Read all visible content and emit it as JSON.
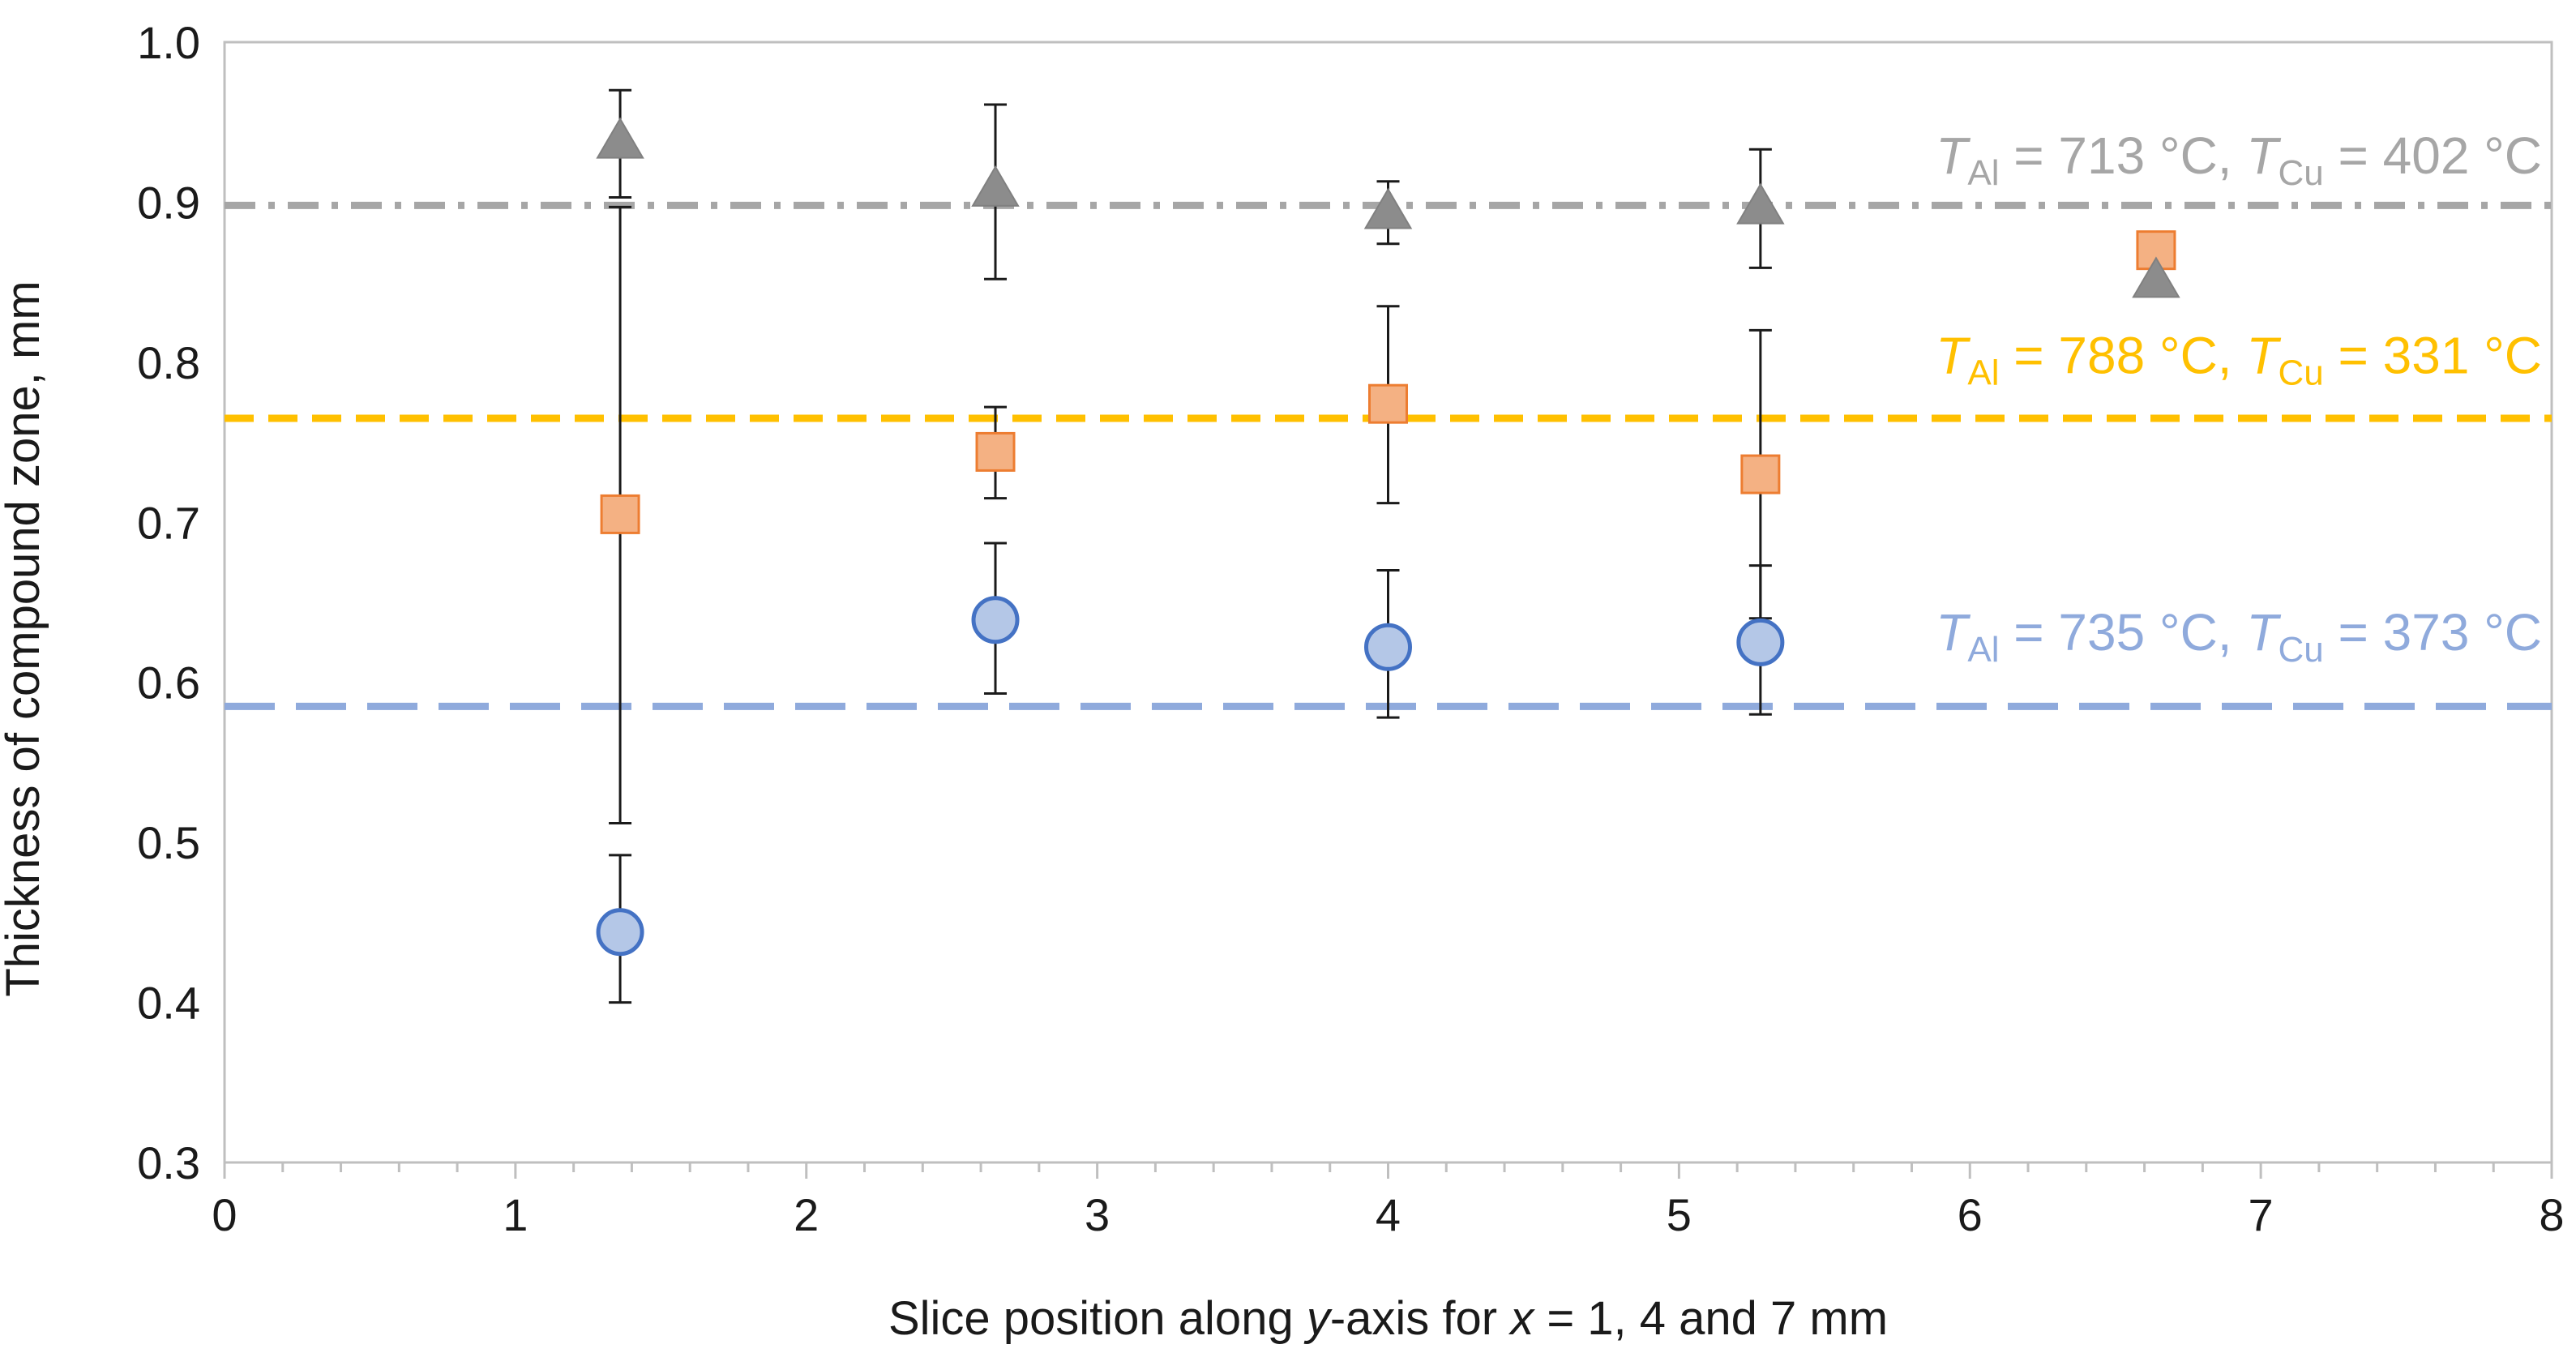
{
  "chart_data": {
    "type": "scatter",
    "title": "",
    "xlabel": "Slice position along y-axis for x = 1, 4 and 7 mm",
    "ylabel": "Thickness of compound zone, mm",
    "xlim": [
      0,
      8
    ],
    "ylim": [
      0.3,
      1.0
    ],
    "x_major_ticks": [
      0,
      1,
      2,
      3,
      4,
      5,
      6,
      7,
      8
    ],
    "x_tick_labels": [
      "0",
      "1",
      "2",
      "3",
      "4",
      "5",
      "6",
      "7",
      "8"
    ],
    "x_minor_step": 0.2,
    "y_major_ticks": [
      0.3,
      0.4,
      0.5,
      0.6,
      0.7,
      0.8,
      0.9,
      1.0
    ],
    "y_tick_labels": [
      "0.3",
      "0.4",
      "0.5",
      "0.6",
      "0.7",
      "0.8",
      "0.9",
      "1.0"
    ],
    "grid": false,
    "series": [
      {
        "name": "T_Al = 735 °C, T_Cu = 373 °C",
        "marker": "circle",
        "fill": "#b4c7e7",
        "stroke": "#4472c4",
        "mean_line": {
          "y": 0.585,
          "color": "#8faadc",
          "style": "long-dash"
        },
        "label_parts": [
          "T",
          "Al",
          " = 735 °C, ",
          "T",
          "Cu",
          " = 373 °C"
        ],
        "label_y": 0.62,
        "points": [
          {
            "x": 1.36,
            "y": 0.444,
            "err_low": 0.4,
            "err_high": 0.492
          },
          {
            "x": 2.65,
            "y": 0.639,
            "err_low": 0.593,
            "err_high": 0.687
          },
          {
            "x": 4.0,
            "y": 0.622,
            "err_low": 0.578,
            "err_high": 0.67
          },
          {
            "x": 5.28,
            "y": 0.625,
            "err_low": 0.58,
            "err_high": 0.673
          }
        ]
      },
      {
        "name": "T_Al = 788 °C, T_Cu = 331 °C",
        "marker": "square",
        "fill": "#f4b183",
        "stroke": "#ed7d31",
        "mean_line": {
          "y": 0.765,
          "color": "#ffc000",
          "style": "dash"
        },
        "label_parts": [
          "T",
          "Al",
          " = 788 °C, ",
          "T",
          "Cu",
          " = 331 °C"
        ],
        "label_y": 0.793,
        "points": [
          {
            "x": 1.36,
            "y": 0.705,
            "err_low": 0.512,
            "err_high": 0.897
          },
          {
            "x": 2.65,
            "y": 0.744,
            "err_low": 0.715,
            "err_high": 0.772
          },
          {
            "x": 4.0,
            "y": 0.774,
            "err_low": 0.712,
            "err_high": 0.835
          },
          {
            "x": 5.28,
            "y": 0.73,
            "err_low": 0.64,
            "err_high": 0.82
          },
          {
            "x": 6.64,
            "y": 0.87
          }
        ]
      },
      {
        "name": "T_Al = 713 °C, T_Cu = 402 °C",
        "marker": "triangle",
        "fill": "#8c8c8c",
        "stroke": "#808080",
        "mean_line": {
          "y": 0.898,
          "color": "#a6a6a6",
          "style": "dash-dot"
        },
        "label_parts": [
          "T",
          "Al",
          " = 713 °C, ",
          "T",
          "Cu",
          " = 402 °C"
        ],
        "label_y": 0.918,
        "points": [
          {
            "x": 1.36,
            "y": 0.937,
            "err_low": 0.903,
            "err_high": 0.97
          },
          {
            "x": 2.65,
            "y": 0.907,
            "err_low": 0.852,
            "err_high": 0.961
          },
          {
            "x": 4.0,
            "y": 0.893,
            "err_low": 0.874,
            "err_high": 0.913
          },
          {
            "x": 5.28,
            "y": 0.896,
            "err_low": 0.859,
            "err_high": 0.933
          },
          {
            "x": 6.64,
            "y": 0.85
          }
        ]
      }
    ]
  }
}
